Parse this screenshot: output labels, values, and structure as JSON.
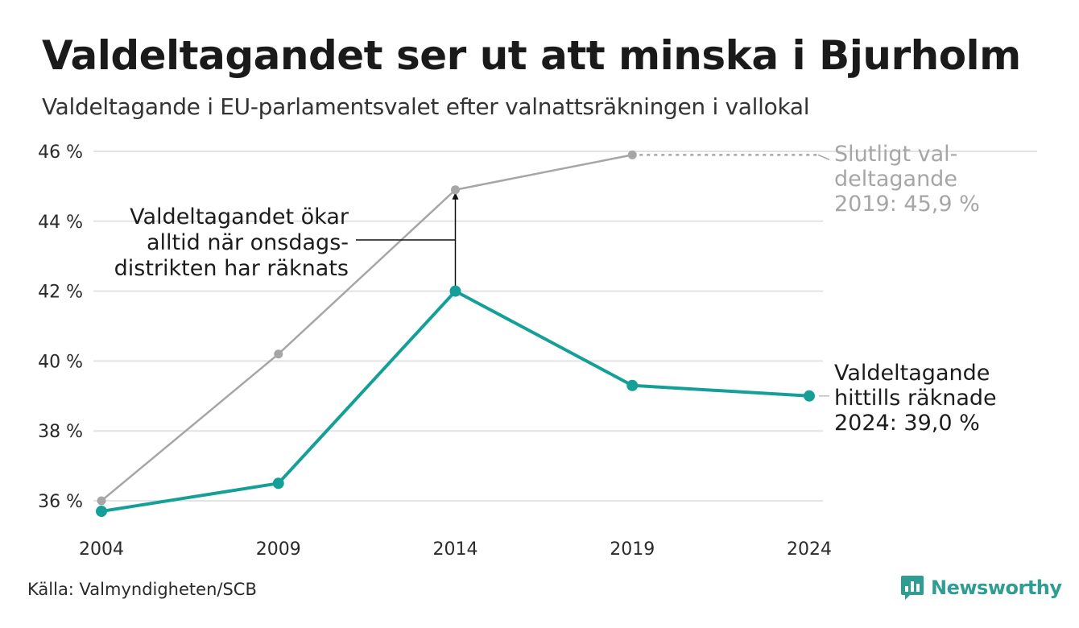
{
  "title": "Valdeltagandet ser ut att minska i Bjurholm",
  "subtitle": "Valdeltagande i EU-parlamentsvalet efter valnattsräkningen i vallokal",
  "source": "Källa: Valmyndigheten/SCB",
  "brand": {
    "name": "Newsworthy",
    "icon": "bar-chart-speech-bubble-icon",
    "color": "#2f9d91"
  },
  "chart_data": {
    "type": "line",
    "x": [
      "2004",
      "2009",
      "2014",
      "2019",
      "2024"
    ],
    "ylim": [
      35.3,
      46.3
    ],
    "y_ticks": [
      36,
      38,
      40,
      42,
      44,
      46
    ],
    "y_tick_labels": [
      "36 %",
      "38 %",
      "40 %",
      "42 %",
      "44 %",
      "46 %"
    ],
    "grid": true,
    "series": [
      {
        "key": "final",
        "color": "#a6a6a6",
        "values": [
          36.0,
          40.2,
          44.9,
          45.9,
          null
        ]
      },
      {
        "key": "election_night",
        "color": "#14a098",
        "values": [
          35.7,
          36.5,
          42.0,
          39.3,
          39.0
        ]
      }
    ],
    "annotations": {
      "final_label": [
        "Slutligt val-",
        "deltagande",
        "2019: 45,9 %"
      ],
      "current_label": [
        "Valdeltagande",
        "hittills räknade",
        "2024: 39,0 %"
      ],
      "callout": [
        "Valdeltagandet ökar",
        "alltid när onsdags-",
        "distrikten har räknats"
      ]
    }
  }
}
